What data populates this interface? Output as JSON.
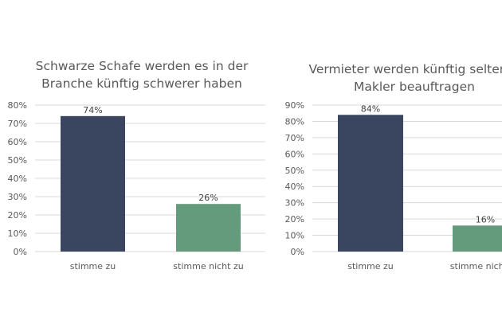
{
  "colors": {
    "agree": "#3a4560",
    "disagree": "#649b7d",
    "grid": "#d9d9d9"
  },
  "chart_data": [
    {
      "type": "bar",
      "title_lines": [
        "Schwarze Schafe werden es in der",
        "Branche künftig schwerer haben"
      ],
      "categories": [
        "stimme zu",
        "stimme nicht zu"
      ],
      "values": [
        74,
        26
      ],
      "data_labels": [
        "74%",
        "26%"
      ],
      "ylim": [
        0,
        80
      ],
      "yticks": [
        "0%",
        "10%",
        "20%",
        "30%",
        "40%",
        "50%",
        "60%",
        "70%",
        "80%"
      ],
      "grid": true
    },
    {
      "type": "bar",
      "title_lines": [
        "Vermieter werden künftig seltener",
        "Makler beauftragen"
      ],
      "categories": [
        "stimme zu",
        "stimme nicht zu"
      ],
      "values": [
        84,
        16
      ],
      "data_labels": [
        "84%",
        "16%"
      ],
      "ylim": [
        0,
        90
      ],
      "yticks": [
        "0%",
        "10%",
        "20%",
        "30%",
        "40%",
        "50%",
        "60%",
        "70%",
        "80%",
        "90%"
      ],
      "grid": true
    }
  ]
}
